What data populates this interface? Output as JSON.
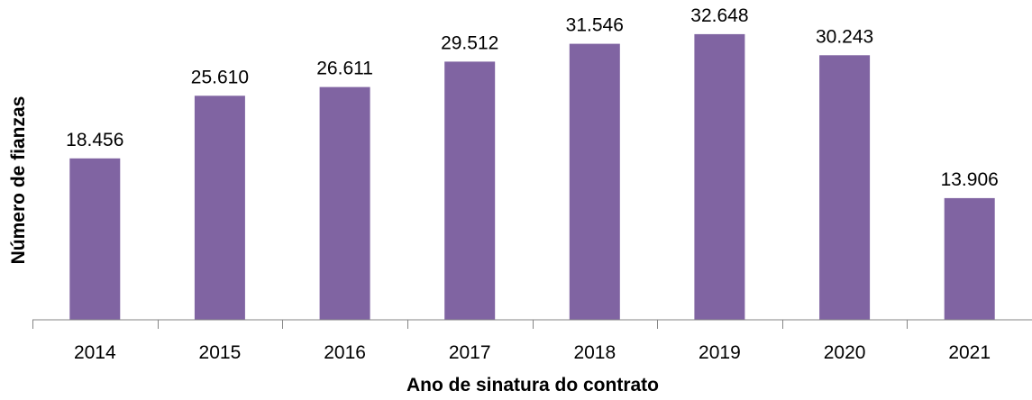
{
  "chart_data": {
    "type": "bar",
    "categories": [
      "2014",
      "2015",
      "2016",
      "2017",
      "2018",
      "2019",
      "2020",
      "2021"
    ],
    "values": [
      18456,
      25610,
      26611,
      29512,
      31546,
      32648,
      30243,
      13906
    ],
    "data_labels": [
      "18.456",
      "25.610",
      "26.611",
      "29.512",
      "31.546",
      "32.648",
      "30.243",
      "13.906"
    ],
    "title": "",
    "xlabel": "Ano de sinatura do contrato",
    "ylabel": "Número de  fianzas",
    "ylim": [
      0,
      35000
    ],
    "grid": false,
    "legend": "none",
    "bar_color": "#8064A2",
    "axis_color": "#868686"
  }
}
